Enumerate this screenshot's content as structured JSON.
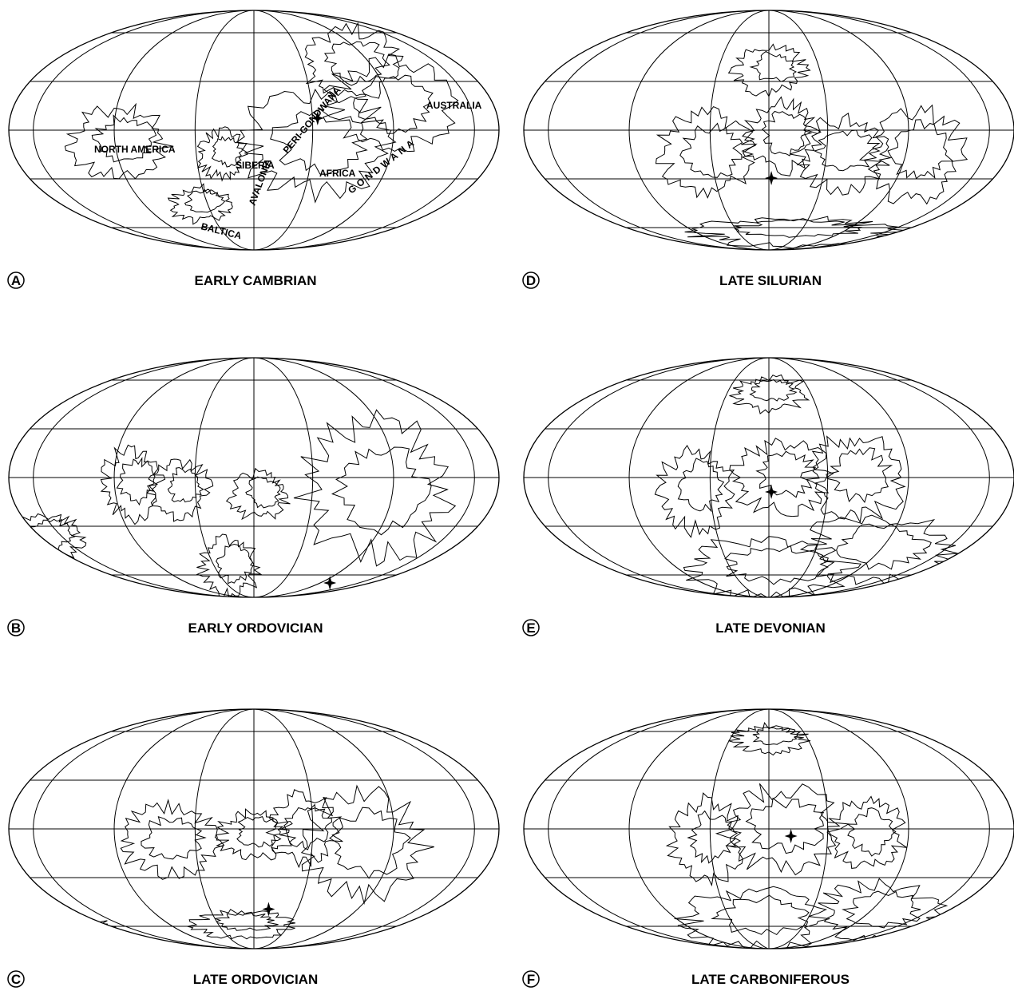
{
  "panels": [
    {
      "letter": "A",
      "title": "EARLY CAMBRIAN",
      "labels": [
        "NORTH AMERICA",
        "SIBERIA",
        "BALTICA",
        "AVALONIA",
        "PERI-GONDWANA",
        "AFRICA",
        "AUSTRALIA",
        "GONDWANA"
      ]
    },
    {
      "letter": "B",
      "title": "EARLY ORDOVICIAN"
    },
    {
      "letter": "C",
      "title": "LATE ORDOVICIAN"
    },
    {
      "letter": "D",
      "title": "LATE SILURIAN"
    },
    {
      "letter": "E",
      "title": "LATE DEVONIAN"
    },
    {
      "letter": "F",
      "title": "LATE CARBONIFEROUS"
    }
  ]
}
